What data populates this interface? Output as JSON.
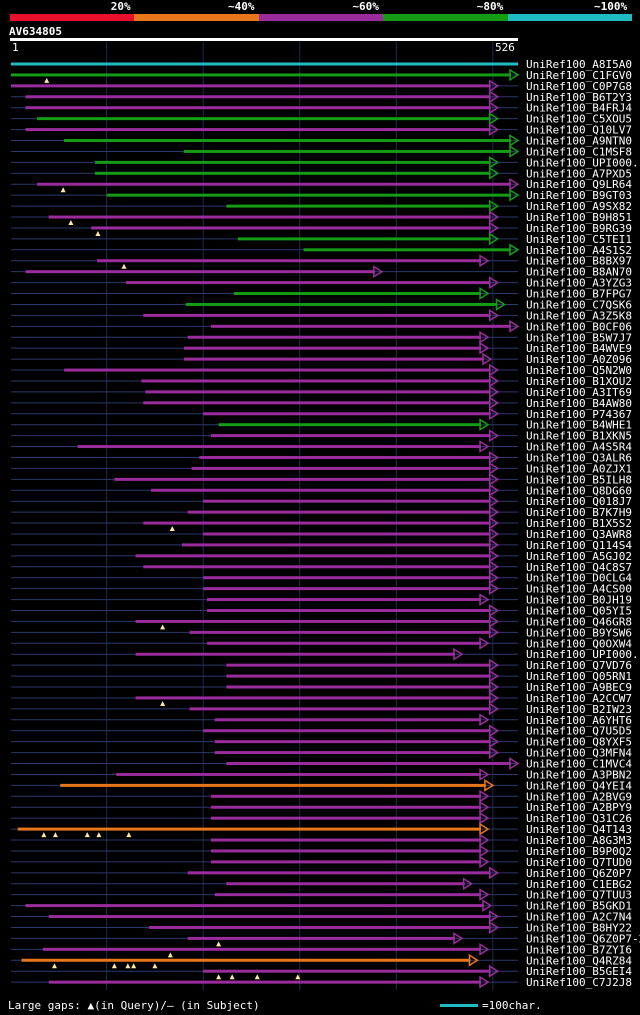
{
  "legend": {
    "segments": [
      {
        "label": "20%",
        "color": "#e8102c"
      },
      {
        "label": "~40%",
        "color": "#e8771c"
      },
      {
        "label": "~60%",
        "color": "#9a2c9e"
      },
      {
        "label": "~80%",
        "color": "#159c15"
      },
      {
        "label": "~100%",
        "color": "#1fbcc4"
      }
    ]
  },
  "query": {
    "id": "AV634805",
    "start_label": "1",
    "end_label": "526",
    "length": 526
  },
  "footer": {
    "gap_label": "Large gaps: ▲(in Query)/– (in Subject)",
    "scale_label": "=100char.",
    "scale_color": "#1fbcc4"
  },
  "chart_data": {
    "type": "alignment-map",
    "query_length": 526,
    "colors": {
      "cyan": "#1fbcc4",
      "green": "#159c15",
      "purple": "#9a2c9e",
      "orange": "#e8771c",
      "red": "#e8102c",
      "axis": "#2a3a6a"
    },
    "hits": [
      {
        "name": "UniRef100_A8I5A0",
        "start": 1,
        "end": 526,
        "color": "cyan",
        "arrow": false,
        "q_gaps": []
      },
      {
        "name": "UniRef100_C1FGV0",
        "start": 1,
        "end": 526,
        "color": "green",
        "arrow": true,
        "q_gaps": [
          38
        ]
      },
      {
        "name": "UniRef100_C0P7G8",
        "start": 1,
        "end": 505,
        "color": "purple",
        "arrow": true,
        "q_gaps": []
      },
      {
        "name": "UniRef100_B6T2Y3",
        "start": 16,
        "end": 505,
        "color": "purple",
        "arrow": true,
        "q_gaps": []
      },
      {
        "name": "UniRef100_B4FRJ4",
        "start": 16,
        "end": 505,
        "color": "purple",
        "arrow": true,
        "q_gaps": []
      },
      {
        "name": "UniRef100_C5XOU5",
        "start": 28,
        "end": 505,
        "color": "green",
        "arrow": true,
        "q_gaps": []
      },
      {
        "name": "UniRef100_Q10LV7",
        "start": 16,
        "end": 505,
        "color": "purple",
        "arrow": true,
        "q_gaps": []
      },
      {
        "name": "UniRef100_A9NTN0",
        "start": 56,
        "end": 526,
        "color": "green",
        "arrow": true,
        "q_gaps": []
      },
      {
        "name": "UniRef100_C1MSF8",
        "start": 180,
        "end": 526,
        "color": "green",
        "arrow": true,
        "q_gaps": []
      },
      {
        "name": "UniRef100_UPI000...",
        "start": 88,
        "end": 505,
        "color": "green",
        "arrow": true,
        "q_gaps": []
      },
      {
        "name": "UniRef100_A7PXD5",
        "start": 88,
        "end": 505,
        "color": "green",
        "arrow": true,
        "q_gaps": []
      },
      {
        "name": "UniRef100_Q9LR64",
        "start": 28,
        "end": 526,
        "color": "purple",
        "arrow": true,
        "q_gaps": [
          55
        ]
      },
      {
        "name": "UniRef100_B9GT03",
        "start": 100,
        "end": 526,
        "color": "green",
        "arrow": true,
        "q_gaps": []
      },
      {
        "name": "UniRef100_A9SX82",
        "start": 224,
        "end": 505,
        "color": "green",
        "arrow": true,
        "q_gaps": []
      },
      {
        "name": "UniRef100_B9H851",
        "start": 40,
        "end": 505,
        "color": "purple",
        "arrow": true,
        "q_gaps": [
          63
        ]
      },
      {
        "name": "UniRef100_B9RG39",
        "start": 84,
        "end": 505,
        "color": "purple",
        "arrow": true,
        "q_gaps": [
          91
        ]
      },
      {
        "name": "UniRef100_C5TEI1",
        "start": 236,
        "end": 505,
        "color": "green",
        "arrow": true,
        "q_gaps": []
      },
      {
        "name": "UniRef100_A4S1S2",
        "start": 304,
        "end": 526,
        "color": "green",
        "arrow": true,
        "q_gaps": []
      },
      {
        "name": "UniRef100_B8BX97",
        "start": 90,
        "end": 495,
        "color": "purple",
        "arrow": true,
        "q_gaps": [
          118
        ]
      },
      {
        "name": "UniRef100_B8AN70",
        "start": 16,
        "end": 385,
        "color": "purple",
        "arrow": true,
        "q_gaps": []
      },
      {
        "name": "UniRef100_A3YZG3",
        "start": 120,
        "end": 505,
        "color": "purple",
        "arrow": true,
        "q_gaps": []
      },
      {
        "name": "UniRef100_B7FPG7",
        "start": 232,
        "end": 495,
        "color": "green",
        "arrow": true,
        "q_gaps": []
      },
      {
        "name": "UniRef100_C7QSK6",
        "start": 182,
        "end": 512,
        "color": "green",
        "arrow": true,
        "q_gaps": []
      },
      {
        "name": "UniRef100_A3Z5K8",
        "start": 138,
        "end": 505,
        "color": "purple",
        "arrow": true,
        "q_gaps": []
      },
      {
        "name": "UniRef100_B0CF06",
        "start": 208,
        "end": 526,
        "color": "purple",
        "arrow": true,
        "q_gaps": []
      },
      {
        "name": "UniRef100_B5W7J7",
        "start": 184,
        "end": 495,
        "color": "purple",
        "arrow": true,
        "q_gaps": []
      },
      {
        "name": "UniRef100_B4WVE9",
        "start": 180,
        "end": 495,
        "color": "purple",
        "arrow": true,
        "q_gaps": []
      },
      {
        "name": "UniRef100_A0Z096",
        "start": 180,
        "end": 498,
        "color": "purple",
        "arrow": true,
        "q_gaps": []
      },
      {
        "name": "UniRef100_Q5N2W0",
        "start": 56,
        "end": 505,
        "color": "purple",
        "arrow": true,
        "q_gaps": []
      },
      {
        "name": "UniRef100_B1XOU2",
        "start": 136,
        "end": 505,
        "color": "purple",
        "arrow": true,
        "q_gaps": []
      },
      {
        "name": "UniRef100_A3IT69",
        "start": 140,
        "end": 505,
        "color": "purple",
        "arrow": true,
        "q_gaps": []
      },
      {
        "name": "UniRef100_B4AW80",
        "start": 138,
        "end": 505,
        "color": "purple",
        "arrow": true,
        "q_gaps": []
      },
      {
        "name": "UniRef100_P74367",
        "start": 200,
        "end": 505,
        "color": "purple",
        "arrow": true,
        "q_gaps": []
      },
      {
        "name": "UniRef100_B4WHE1",
        "start": 216,
        "end": 495,
        "color": "green",
        "arrow": true,
        "q_gaps": []
      },
      {
        "name": "UniRef100_B1XKN5",
        "start": 208,
        "end": 505,
        "color": "purple",
        "arrow": true,
        "q_gaps": []
      },
      {
        "name": "UniRef100_A4S5R4",
        "start": 70,
        "end": 495,
        "color": "purple",
        "arrow": true,
        "q_gaps": []
      },
      {
        "name": "UniRef100_Q3ALR6",
        "start": 196,
        "end": 505,
        "color": "purple",
        "arrow": true,
        "q_gaps": []
      },
      {
        "name": "UniRef100_A0ZJX1",
        "start": 188,
        "end": 505,
        "color": "purple",
        "arrow": true,
        "q_gaps": []
      },
      {
        "name": "UniRef100_B5ILH8",
        "start": 108,
        "end": 505,
        "color": "purple",
        "arrow": true,
        "q_gaps": []
      },
      {
        "name": "UniRef100_Q8DG60",
        "start": 146,
        "end": 505,
        "color": "purple",
        "arrow": true,
        "q_gaps": []
      },
      {
        "name": "UniRef100_Q018J7",
        "start": 200,
        "end": 505,
        "color": "purple",
        "arrow": true,
        "q_gaps": []
      },
      {
        "name": "UniRef100_B7K7H9",
        "start": 184,
        "end": 505,
        "color": "purple",
        "arrow": true,
        "q_gaps": []
      },
      {
        "name": "UniRef100_B1X5S2",
        "start": 138,
        "end": 505,
        "color": "purple",
        "arrow": true,
        "q_gaps": [
          168
        ]
      },
      {
        "name": "UniRef100_Q3AWR8",
        "start": 200,
        "end": 505,
        "color": "purple",
        "arrow": true,
        "q_gaps": []
      },
      {
        "name": "UniRef100_Q114S4",
        "start": 178,
        "end": 505,
        "color": "purple",
        "arrow": true,
        "q_gaps": []
      },
      {
        "name": "UniRef100_A5GJ02",
        "start": 130,
        "end": 505,
        "color": "purple",
        "arrow": true,
        "q_gaps": []
      },
      {
        "name": "UniRef100_Q4C8S7",
        "start": 138,
        "end": 505,
        "color": "purple",
        "arrow": true,
        "q_gaps": []
      },
      {
        "name": "UniRef100_D0CLG4",
        "start": 200,
        "end": 505,
        "color": "purple",
        "arrow": true,
        "q_gaps": []
      },
      {
        "name": "UniRef100_A4CS00",
        "start": 200,
        "end": 505,
        "color": "purple",
        "arrow": true,
        "q_gaps": []
      },
      {
        "name": "UniRef100_B0JH19",
        "start": 204,
        "end": 495,
        "color": "purple",
        "arrow": true,
        "q_gaps": []
      },
      {
        "name": "UniRef100_Q05YI5",
        "start": 204,
        "end": 505,
        "color": "purple",
        "arrow": true,
        "q_gaps": []
      },
      {
        "name": "UniRef100_Q46GR8",
        "start": 130,
        "end": 505,
        "color": "purple",
        "arrow": true,
        "q_gaps": [
          158
        ]
      },
      {
        "name": "UniRef100_B9YSW6",
        "start": 186,
        "end": 505,
        "color": "purple",
        "arrow": true,
        "q_gaps": []
      },
      {
        "name": "UniRef100_Q0OXW4",
        "start": 204,
        "end": 495,
        "color": "purple",
        "arrow": true,
        "q_gaps": []
      },
      {
        "name": "UniRef100_UPI000...",
        "start": 130,
        "end": 468,
        "color": "purple",
        "arrow": true,
        "q_gaps": []
      },
      {
        "name": "UniRef100_Q7VD76",
        "start": 224,
        "end": 505,
        "color": "purple",
        "arrow": true,
        "q_gaps": []
      },
      {
        "name": "UniRef100_Q05RN1",
        "start": 224,
        "end": 505,
        "color": "purple",
        "arrow": true,
        "q_gaps": []
      },
      {
        "name": "UniRef100_A9BEC9",
        "start": 224,
        "end": 505,
        "color": "purple",
        "arrow": true,
        "q_gaps": []
      },
      {
        "name": "UniRef100_A2CCW7",
        "start": 130,
        "end": 505,
        "color": "purple",
        "arrow": true,
        "q_gaps": [
          158
        ]
      },
      {
        "name": "UniRef100_B2IW23",
        "start": 186,
        "end": 505,
        "color": "purple",
        "arrow": true,
        "q_gaps": []
      },
      {
        "name": "UniRef100_A6YHT6",
        "start": 212,
        "end": 495,
        "color": "purple",
        "arrow": true,
        "q_gaps": []
      },
      {
        "name": "UniRef100_Q7U5D5",
        "start": 200,
        "end": 505,
        "color": "purple",
        "arrow": true,
        "q_gaps": []
      },
      {
        "name": "UniRef100_Q8YXF5",
        "start": 212,
        "end": 505,
        "color": "purple",
        "arrow": true,
        "q_gaps": []
      },
      {
        "name": "UniRef100_Q3MFN4",
        "start": 212,
        "end": 505,
        "color": "purple",
        "arrow": true,
        "q_gaps": []
      },
      {
        "name": "UniRef100_C1MVC4",
        "start": 224,
        "end": 526,
        "color": "purple",
        "arrow": true,
        "q_gaps": []
      },
      {
        "name": "UniRef100_A3PBN2",
        "start": 110,
        "end": 495,
        "color": "purple",
        "arrow": true,
        "q_gaps": []
      },
      {
        "name": "UniRef100_Q4YEI4",
        "start": 52,
        "end": 500,
        "color": "orange",
        "arrow": true,
        "q_gaps": []
      },
      {
        "name": "UniRef100_A2BVG9",
        "start": 208,
        "end": 495,
        "color": "purple",
        "arrow": true,
        "q_gaps": []
      },
      {
        "name": "UniRef100_A2BPY9",
        "start": 208,
        "end": 495,
        "color": "purple",
        "arrow": true,
        "q_gaps": []
      },
      {
        "name": "UniRef100_Q31C26",
        "start": 208,
        "end": 495,
        "color": "purple",
        "arrow": true,
        "q_gaps": []
      },
      {
        "name": "UniRef100_Q4T143",
        "start": 8,
        "end": 495,
        "color": "orange",
        "arrow": true,
        "q_gaps": [
          35,
          47,
          80,
          92,
          123
        ]
      },
      {
        "name": "UniRef100_A8G3M3",
        "start": 208,
        "end": 495,
        "color": "purple",
        "arrow": true,
        "q_gaps": []
      },
      {
        "name": "UniRef100_B9P0Q2",
        "start": 208,
        "end": 495,
        "color": "purple",
        "arrow": true,
        "q_gaps": []
      },
      {
        "name": "UniRef100_Q7TUD0",
        "start": 208,
        "end": 495,
        "color": "purple",
        "arrow": true,
        "q_gaps": []
      },
      {
        "name": "UniRef100_Q6Z0P7",
        "start": 184,
        "end": 505,
        "color": "purple",
        "arrow": true,
        "q_gaps": []
      },
      {
        "name": "UniRef100_C1EBG2",
        "start": 224,
        "end": 478,
        "color": "purple",
        "arrow": true,
        "q_gaps": []
      },
      {
        "name": "UniRef100_Q7TUU3",
        "start": 212,
        "end": 495,
        "color": "purple",
        "arrow": true,
        "q_gaps": []
      },
      {
        "name": "UniRef100_B5GKD1",
        "start": 16,
        "end": 498,
        "color": "purple",
        "arrow": true,
        "q_gaps": []
      },
      {
        "name": "UniRef100_A2C7N4",
        "start": 40,
        "end": 505,
        "color": "purple",
        "arrow": true,
        "q_gaps": []
      },
      {
        "name": "UniRef100_B8HY22",
        "start": 144,
        "end": 505,
        "color": "purple",
        "arrow": true,
        "q_gaps": []
      },
      {
        "name": "UniRef100_Q6Z0P7-2",
        "start": 184,
        "end": 468,
        "color": "purple",
        "arrow": true,
        "q_gaps": [
          216
        ]
      },
      {
        "name": "UniRef100_B7ZYI6",
        "start": 34,
        "end": 495,
        "color": "purple",
        "arrow": true,
        "q_gaps": [
          166
        ]
      },
      {
        "name": "UniRef100_Q4RZ84",
        "start": 12,
        "end": 484,
        "color": "orange",
        "arrow": true,
        "q_gaps": [
          46,
          108,
          122,
          128,
          150
        ]
      },
      {
        "name": "UniRef100_B5GEI4",
        "start": 200,
        "end": 505,
        "color": "purple",
        "arrow": true,
        "q_gaps": [
          216,
          230,
          256,
          298
        ]
      },
      {
        "name": "UniRef100_C7J2J8",
        "start": 40,
        "end": 495,
        "color": "purple",
        "arrow": true,
        "q_gaps": []
      }
    ]
  }
}
